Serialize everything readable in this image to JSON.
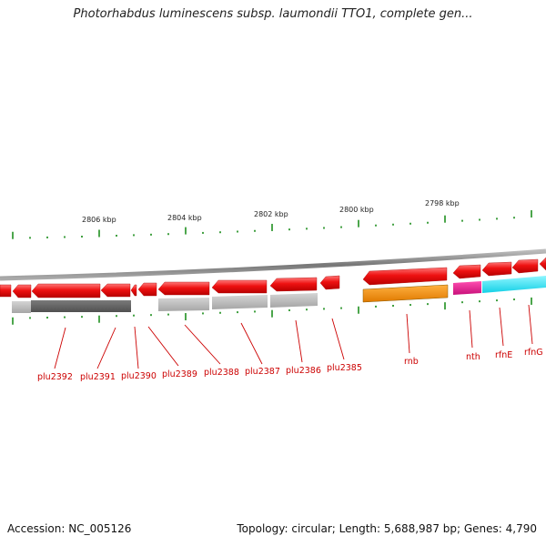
{
  "title": "Photorhabdus luminescens subsp. laumondii TTO1, complete gen...",
  "footer": {
    "accession": "Accession: NC_005126",
    "summary": "Topology: circular; Length: 5,688,987 bp; Genes: 4,790"
  },
  "scale_labels": [
    "2806 kbp",
    "2804 kbp",
    "2802 kbp",
    "2800 kbp",
    "2798 kbp"
  ],
  "gene_labels": [
    "plu2392",
    "plu2391",
    "plu2390",
    "plu2389",
    "plu2388",
    "plu2387",
    "plu2386",
    "plu2385",
    "rnb",
    "nth",
    "rfnE",
    "rfnG"
  ],
  "colors": {
    "gene": "#ee1111",
    "backbone": "#888888",
    "tick": "#118811",
    "label": "#cc0000",
    "cog_dark": "#666666",
    "cog_light": "#aaaaaa",
    "cog_orange": "#f08c00",
    "cog_magenta": "#e0158c",
    "cog_cyan": "#22e4f4"
  }
}
